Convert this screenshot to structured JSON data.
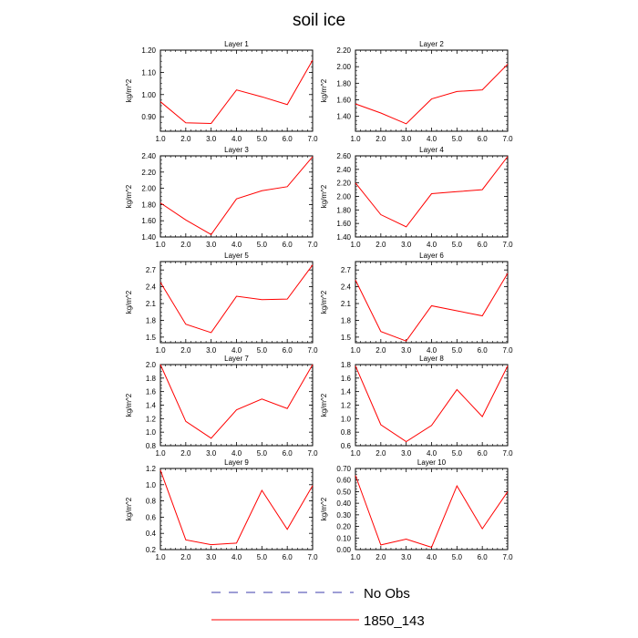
{
  "title": "soil ice",
  "legend": [
    {
      "label": "No Obs",
      "color": "#3d3dab",
      "style": "dashed"
    },
    {
      "label": "1850_143",
      "color": "#ff0000",
      "style": "solid"
    }
  ],
  "chart_data": [
    {
      "type": "line",
      "title": "Layer 1",
      "ylabel": "kg/m^2",
      "x": [
        1,
        2,
        3,
        4,
        5,
        6,
        7
      ],
      "xlim": [
        1,
        7
      ],
      "xticks": [
        "1.0",
        "2.0",
        "3.0",
        "4.0",
        "5.0",
        "6.0",
        "7.0"
      ],
      "ylim": [
        0.835,
        1.2
      ],
      "yticks": [
        0.9,
        1.0,
        1.1,
        1.2
      ],
      "ydec": 2,
      "series": [
        {
          "name": "1850_143",
          "values": [
            0.968,
            0.873,
            0.87,
            1.021,
            0.99,
            0.955,
            1.155
          ]
        }
      ]
    },
    {
      "type": "line",
      "title": "Layer 2",
      "ylabel": "kg/m^2",
      "x": [
        1,
        2,
        3,
        4,
        5,
        6,
        7
      ],
      "xlim": [
        1,
        7
      ],
      "xticks": [
        "1.0",
        "2.0",
        "3.0",
        "4.0",
        "5.0",
        "6.0",
        "7.0"
      ],
      "ylim": [
        1.22,
        2.2
      ],
      "yticks": [
        1.4,
        1.6,
        1.8,
        2.0,
        2.2
      ],
      "ydec": 2,
      "series": [
        {
          "name": "1850_143",
          "values": [
            1.55,
            1.44,
            1.31,
            1.61,
            1.7,
            1.72,
            2.03
          ]
        }
      ]
    },
    {
      "type": "line",
      "title": "Layer 3",
      "ylabel": "kg/m^2",
      "x": [
        1,
        2,
        3,
        4,
        5,
        6,
        7
      ],
      "xlim": [
        1,
        7
      ],
      "xticks": [
        "1.0",
        "2.0",
        "3.0",
        "4.0",
        "5.0",
        "6.0",
        "7.0"
      ],
      "ylim": [
        1.4,
        2.4
      ],
      "yticks": [
        1.4,
        1.6,
        1.8,
        2.0,
        2.2,
        2.4
      ],
      "ydec": 2,
      "series": [
        {
          "name": "1850_143",
          "values": [
            1.82,
            1.61,
            1.43,
            1.87,
            1.97,
            2.02,
            2.39
          ]
        }
      ]
    },
    {
      "type": "line",
      "title": "Layer 4",
      "ylabel": "kg/m^2",
      "x": [
        1,
        2,
        3,
        4,
        5,
        6,
        7
      ],
      "xlim": [
        1,
        7
      ],
      "xticks": [
        "1.0",
        "2.0",
        "3.0",
        "4.0",
        "5.0",
        "6.0",
        "7.0"
      ],
      "ylim": [
        1.4,
        2.6
      ],
      "yticks": [
        1.4,
        1.6,
        1.8,
        2.0,
        2.2,
        2.4,
        2.6
      ],
      "ydec": 2,
      "series": [
        {
          "name": "1850_143",
          "values": [
            2.2,
            1.73,
            1.55,
            2.04,
            2.07,
            2.1,
            2.59
          ]
        }
      ]
    },
    {
      "type": "line",
      "title": "Layer 5",
      "ylabel": "kg/m^2",
      "x": [
        1,
        2,
        3,
        4,
        5,
        6,
        7
      ],
      "xlim": [
        1,
        7
      ],
      "xticks": [
        "1.0",
        "2.0",
        "3.0",
        "4.0",
        "5.0",
        "6.0",
        "7.0"
      ],
      "ylim": [
        1.4,
        2.85
      ],
      "yticks": [
        1.5,
        1.8,
        2.1,
        2.4,
        2.7
      ],
      "ydec": 1,
      "series": [
        {
          "name": "1850_143",
          "values": [
            2.48,
            1.73,
            1.58,
            2.23,
            2.17,
            2.18,
            2.79
          ]
        }
      ]
    },
    {
      "type": "line",
      "title": "Layer 6",
      "ylabel": "kg/m^2",
      "x": [
        1,
        2,
        3,
        4,
        5,
        6,
        7
      ],
      "xlim": [
        1,
        7
      ],
      "xticks": [
        "1.0",
        "2.0",
        "3.0",
        "4.0",
        "5.0",
        "6.0",
        "7.0"
      ],
      "ylim": [
        1.4,
        2.85
      ],
      "yticks": [
        1.5,
        1.8,
        2.1,
        2.4,
        2.7
      ],
      "ydec": 1,
      "series": [
        {
          "name": "1850_143",
          "values": [
            2.52,
            1.6,
            1.43,
            2.06,
            1.97,
            1.88,
            2.64
          ]
        }
      ]
    },
    {
      "type": "line",
      "title": "Layer 7",
      "ylabel": "kg/m^2",
      "x": [
        1,
        2,
        3,
        4,
        5,
        6,
        7
      ],
      "xlim": [
        1,
        7
      ],
      "xticks": [
        "1.0",
        "2.0",
        "3.0",
        "4.0",
        "5.0",
        "6.0",
        "7.0"
      ],
      "ylim": [
        0.8,
        2.0
      ],
      "yticks": [
        0.8,
        1.0,
        1.2,
        1.4,
        1.6,
        1.8,
        2.0
      ],
      "ydec": 1,
      "series": [
        {
          "name": "1850_143",
          "values": [
            2.0,
            1.16,
            0.91,
            1.33,
            1.49,
            1.35,
            2.0
          ]
        }
      ]
    },
    {
      "type": "line",
      "title": "Layer 8",
      "ylabel": "kg/m^2",
      "x": [
        1,
        2,
        3,
        4,
        5,
        6,
        7
      ],
      "xlim": [
        1,
        7
      ],
      "xticks": [
        "1.0",
        "2.0",
        "3.0",
        "4.0",
        "5.0",
        "6.0",
        "7.0"
      ],
      "ylim": [
        0.6,
        1.8
      ],
      "yticks": [
        0.6,
        0.8,
        1.0,
        1.2,
        1.4,
        1.6,
        1.8
      ],
      "ydec": 1,
      "series": [
        {
          "name": "1850_143",
          "values": [
            1.78,
            0.91,
            0.66,
            0.9,
            1.43,
            1.03,
            1.78
          ]
        }
      ]
    },
    {
      "type": "line",
      "title": "Layer 9",
      "ylabel": "kg/m^2",
      "x": [
        1,
        2,
        3,
        4,
        5,
        6,
        7
      ],
      "xlim": [
        1,
        7
      ],
      "xticks": [
        "1.0",
        "2.0",
        "3.0",
        "4.0",
        "5.0",
        "6.0",
        "7.0"
      ],
      "ylim": [
        0.2,
        1.2
      ],
      "yticks": [
        0.2,
        0.4,
        0.6,
        0.8,
        1.0,
        1.2
      ],
      "ydec": 1,
      "series": [
        {
          "name": "1850_143",
          "values": [
            1.18,
            0.32,
            0.26,
            0.28,
            0.93,
            0.45,
            0.99
          ]
        }
      ]
    },
    {
      "type": "line",
      "title": "Layer 10",
      "ylabel": "kg/m^2",
      "x": [
        1,
        2,
        3,
        4,
        5,
        6,
        7
      ],
      "xlim": [
        1,
        7
      ],
      "xticks": [
        "1.0",
        "2.0",
        "3.0",
        "4.0",
        "5.0",
        "6.0",
        "7.0"
      ],
      "ylim": [
        0.0,
        0.7
      ],
      "yticks": [
        0.0,
        0.1,
        0.2,
        0.3,
        0.4,
        0.5,
        0.6,
        0.7
      ],
      "ydec": 2,
      "series": [
        {
          "name": "1850_143",
          "values": [
            0.64,
            0.04,
            0.09,
            0.02,
            0.55,
            0.18,
            0.5
          ]
        }
      ]
    }
  ]
}
